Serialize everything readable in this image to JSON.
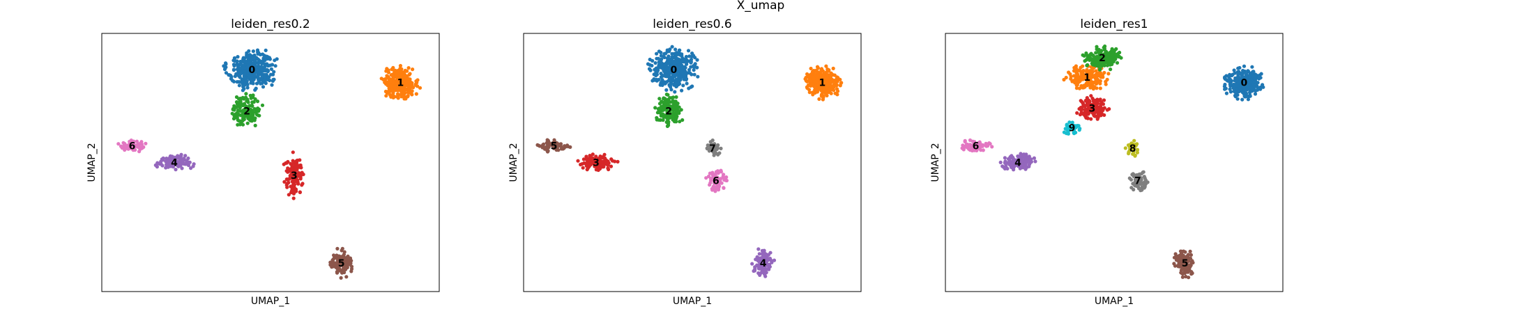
{
  "figure": {
    "title": "X_umap"
  },
  "chart_data": [
    {
      "type": "scatter",
      "title": "leiden_res0.2",
      "xlabel": "UMAP_1",
      "ylabel": "UMAP_2",
      "xlim": [
        0,
        100
      ],
      "ylim": [
        0,
        100
      ],
      "grid": false,
      "legend": "on data",
      "clusters": [
        {
          "label": "0",
          "color": "#1f77b4",
          "cx": 44.5,
          "cy": 86,
          "rx": 8.5,
          "ry": 9,
          "n": 340
        },
        {
          "label": "1",
          "color": "#ff7f0e",
          "cx": 88.5,
          "cy": 81,
          "rx": 6.5,
          "ry": 7,
          "n": 260
        },
        {
          "label": "2",
          "color": "#2ca02c",
          "cx": 43,
          "cy": 70,
          "rx": 5,
          "ry": 7,
          "n": 150
        },
        {
          "label": "3",
          "color": "#d62728",
          "cx": 57,
          "cy": 45,
          "rx": 3.5,
          "ry": 9,
          "n": 120
        },
        {
          "label": "4",
          "color": "#9467bd",
          "cx": 21.5,
          "cy": 50,
          "rx": 6.5,
          "ry": 3.5,
          "n": 110
        },
        {
          "label": "5",
          "color": "#8c564b",
          "cx": 71,
          "cy": 11,
          "rx": 3.5,
          "ry": 6,
          "n": 110
        },
        {
          "label": "6",
          "color": "#e377c2",
          "cx": 9,
          "cy": 56.5,
          "rx": 5,
          "ry": 2.5,
          "n": 70
        }
      ]
    },
    {
      "type": "scatter",
      "title": "leiden_res0.6",
      "xlabel": "UMAP_1",
      "ylabel": "UMAP_2",
      "xlim": [
        0,
        100
      ],
      "ylim": [
        0,
        100
      ],
      "grid": false,
      "legend": "on data",
      "clusters": [
        {
          "label": "0",
          "color": "#1f77b4",
          "cx": 44.5,
          "cy": 86,
          "rx": 8.5,
          "ry": 9,
          "n": 340
        },
        {
          "label": "1",
          "color": "#ff7f0e",
          "cx": 88.5,
          "cy": 81,
          "rx": 6.5,
          "ry": 7,
          "n": 260
        },
        {
          "label": "2",
          "color": "#2ca02c",
          "cx": 43,
          "cy": 70,
          "rx": 5,
          "ry": 7,
          "n": 150
        },
        {
          "label": "3",
          "color": "#d62728",
          "cx": 21.5,
          "cy": 50,
          "rx": 6.5,
          "ry": 3.5,
          "n": 110
        },
        {
          "label": "4",
          "color": "#9467bd",
          "cx": 71,
          "cy": 11,
          "rx": 3.5,
          "ry": 6,
          "n": 110
        },
        {
          "label": "5",
          "color": "#8c564b",
          "cx": 9,
          "cy": 56.5,
          "rx": 5,
          "ry": 2.5,
          "n": 70
        },
        {
          "label": "6",
          "color": "#e377c2",
          "cx": 57,
          "cy": 43,
          "rx": 3.5,
          "ry": 4.5,
          "n": 70
        },
        {
          "label": "7",
          "color": "#7f7f7f",
          "cx": 56,
          "cy": 55.5,
          "rx": 2.5,
          "ry": 3.5,
          "n": 40
        }
      ]
    },
    {
      "type": "scatter",
      "title": "leiden_res1",
      "xlabel": "UMAP_1",
      "ylabel": "UMAP_2",
      "xlim": [
        0,
        100
      ],
      "ylim": [
        0,
        100
      ],
      "grid": false,
      "legend": "on data",
      "clusters": [
        {
          "label": "0",
          "color": "#1f77b4",
          "cx": 88.5,
          "cy": 81,
          "rx": 6.5,
          "ry": 7,
          "n": 260
        },
        {
          "label": "1",
          "color": "#ff7f0e",
          "cx": 42,
          "cy": 83,
          "rx": 7,
          "ry": 6,
          "n": 170
        },
        {
          "label": "2",
          "color": "#2ca02c",
          "cx": 46.5,
          "cy": 90.5,
          "rx": 6,
          "ry": 5,
          "n": 170
        },
        {
          "label": "3",
          "color": "#d62728",
          "cx": 43.5,
          "cy": 71,
          "rx": 5,
          "ry": 5,
          "n": 140
        },
        {
          "label": "4",
          "color": "#9467bd",
          "cx": 21.5,
          "cy": 50,
          "rx": 6.5,
          "ry": 3.5,
          "n": 110
        },
        {
          "label": "5",
          "color": "#8c564b",
          "cx": 71,
          "cy": 11,
          "rx": 3.5,
          "ry": 6,
          "n": 110
        },
        {
          "label": "6",
          "color": "#e377c2",
          "cx": 9,
          "cy": 56.5,
          "rx": 5,
          "ry": 2.5,
          "n": 70
        },
        {
          "label": "7",
          "color": "#7f7f7f",
          "cx": 57,
          "cy": 43,
          "rx": 3.5,
          "ry": 4.5,
          "n": 70
        },
        {
          "label": "8",
          "color": "#bcbd22",
          "cx": 55.5,
          "cy": 55.5,
          "rx": 2.5,
          "ry": 3.5,
          "n": 40
        },
        {
          "label": "9",
          "color": "#17becf",
          "cx": 37.5,
          "cy": 63.5,
          "rx": 3,
          "ry": 3,
          "n": 40
        }
      ]
    }
  ]
}
